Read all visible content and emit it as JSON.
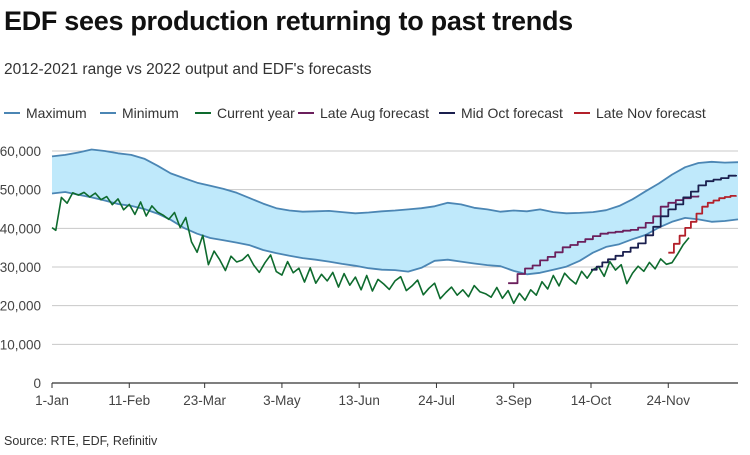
{
  "title": "EDF sees production returning to past trends",
  "subtitle": "2012-2021 range vs 2022 output and EDF's forecasts",
  "source": "Source: RTE, EDF, Refinitiv",
  "colors": {
    "band": "#bfe9fb",
    "range": "#4b86b4",
    "current": "#0e6b2e",
    "aug": "#6b1f5c",
    "oct": "#1a1f4e",
    "nov": "#b3202a",
    "grid": "#c8c8c8",
    "axis": "#333333"
  },
  "legend": [
    {
      "label": "Maximum",
      "color": "#4b86b4"
    },
    {
      "label": "Minimum",
      "color": "#4b86b4"
    },
    {
      "label": "Current year",
      "color": "#0e6b2e"
    },
    {
      "label": "Late Aug forecast",
      "color": "#6b1f5c"
    },
    {
      "label": "Mid Oct forecast",
      "color": "#1a1f4e"
    },
    {
      "label": "Late Nov forecast",
      "color": "#b3202a"
    }
  ],
  "chart_data": {
    "type": "line",
    "title": "EDF sees production returning to past trends",
    "subtitle": "2012-2021 range vs 2022 output and EDF's forecasts",
    "xlabel": "",
    "ylabel": "",
    "x_unit": "day of year",
    "xlim": [
      1,
      365
    ],
    "ylim": [
      0,
      60000
    ],
    "grid": true,
    "legend_position": "top",
    "x_ticks": [
      {
        "day": 1,
        "label": "1-Jan"
      },
      {
        "day": 42,
        "label": "11-Feb"
      },
      {
        "day": 82,
        "label": "23-Mar"
      },
      {
        "day": 123,
        "label": "3-May"
      },
      {
        "day": 164,
        "label": "13-Jun"
      },
      {
        "day": 205,
        "label": "24-Jul"
      },
      {
        "day": 246,
        "label": "3-Sep"
      },
      {
        "day": 287,
        "label": "14-Oct"
      },
      {
        "day": 328,
        "label": "24-Nov"
      }
    ],
    "y_ticks": [
      {
        "value": 0,
        "label": "0"
      },
      {
        "value": 10000,
        "label": "10,000"
      },
      {
        "value": 20000,
        "label": "20,000"
      },
      {
        "value": 30000,
        "label": "30,000"
      },
      {
        "value": 40000,
        "label": "40,000"
      },
      {
        "value": 50000,
        "label": "50,000"
      },
      {
        "value": 60000,
        "label": "60,000"
      }
    ],
    "series": [
      {
        "name": "Maximum",
        "x": [
          1,
          8,
          15,
          22,
          29,
          36,
          43,
          50,
          57,
          64,
          71,
          78,
          85,
          92,
          99,
          106,
          113,
          120,
          127,
          134,
          141,
          148,
          155,
          162,
          169,
          176,
          183,
          190,
          197,
          204,
          211,
          218,
          225,
          232,
          239,
          246,
          253,
          260,
          267,
          274,
          281,
          288,
          295,
          302,
          309,
          316,
          323,
          330,
          337,
          344,
          351,
          358,
          365
        ],
        "y": [
          58600,
          59000,
          59600,
          60400,
          60000,
          59400,
          59000,
          58000,
          56200,
          54200,
          53000,
          51800,
          51000,
          50200,
          49200,
          47800,
          46400,
          45200,
          44600,
          44300,
          44400,
          44500,
          44200,
          43900,
          44100,
          44400,
          44600,
          44900,
          45200,
          45700,
          46600,
          46200,
          45300,
          44900,
          44300,
          44600,
          44400,
          44900,
          44200,
          43900,
          44000,
          44200,
          44700,
          45800,
          47500,
          49600,
          51600,
          53900,
          55800,
          56900,
          57200,
          57000,
          57100
        ]
      },
      {
        "name": "Minimum",
        "x": [
          1,
          8,
          15,
          22,
          29,
          36,
          43,
          50,
          57,
          64,
          71,
          78,
          85,
          92,
          99,
          106,
          113,
          120,
          127,
          134,
          141,
          148,
          155,
          162,
          169,
          176,
          183,
          190,
          197,
          204,
          211,
          218,
          225,
          232,
          239,
          246,
          253,
          260,
          267,
          274,
          281,
          288,
          295,
          302,
          309,
          316,
          323,
          330,
          337,
          344,
          351,
          358,
          365
        ],
        "y": [
          49000,
          49400,
          48700,
          48000,
          47200,
          46300,
          45800,
          45000,
          43800,
          42200,
          40100,
          38600,
          37500,
          36900,
          36300,
          35600,
          34400,
          33600,
          32900,
          32300,
          31900,
          31400,
          30800,
          30300,
          29700,
          29300,
          29200,
          28800,
          29800,
          31600,
          31900,
          31400,
          30900,
          30500,
          30200,
          29000,
          28100,
          28500,
          29300,
          30100,
          31600,
          33700,
          35200,
          35900,
          37200,
          38300,
          40200,
          41700,
          42700,
          42300,
          41700,
          41900,
          42300
        ]
      },
      {
        "name": "Current year",
        "x": [
          1,
          3,
          6,
          9,
          12,
          15,
          18,
          21,
          24,
          27,
          30,
          33,
          36,
          39,
          42,
          45,
          48,
          51,
          54,
          57,
          60,
          63,
          66,
          69,
          72,
          75,
          78,
          81,
          84,
          87,
          90,
          93,
          96,
          99,
          102,
          105,
          108,
          111,
          114,
          117,
          120,
          123,
          126,
          129,
          132,
          135,
          138,
          141,
          144,
          147,
          150,
          153,
          156,
          159,
          162,
          165,
          168,
          171,
          174,
          177,
          180,
          183,
          186,
          189,
          192,
          195,
          198,
          201,
          204,
          207,
          210,
          213,
          216,
          219,
          222,
          225,
          228,
          231,
          234,
          237,
          240,
          243,
          246,
          249,
          252,
          255,
          258,
          261,
          264,
          267,
          270,
          273,
          276,
          279,
          282,
          285,
          288,
          291,
          294,
          297,
          300,
          303,
          306,
          309,
          312,
          315,
          318,
          321,
          324,
          327,
          330,
          333,
          336,
          339
        ],
        "y": [
          40200,
          39500,
          48000,
          46500,
          49200,
          48600,
          49300,
          48100,
          49100,
          47400,
          48200,
          46100,
          47600,
          44800,
          46200,
          43600,
          46800,
          43200,
          45800,
          44200,
          43400,
          42300,
          44100,
          40200,
          42800,
          36500,
          33800,
          38200,
          30600,
          34100,
          31900,
          29100,
          32800,
          31300,
          31800,
          33200,
          30500,
          28600,
          31100,
          33100,
          28800,
          27900,
          31400,
          28500,
          29700,
          26100,
          29800,
          25800,
          28100,
          26400,
          28600,
          24800,
          28300,
          25300,
          27400,
          24100,
          27800,
          23800,
          26800,
          25600,
          24200,
          26400,
          27500,
          23900,
          25100,
          26600,
          22800,
          24500,
          25800,
          21800,
          23400,
          24800,
          22700,
          24100,
          22300,
          25200,
          23600,
          23100,
          22200,
          24700,
          21900,
          23900,
          20600,
          23200,
          21400,
          24100,
          22700,
          26200,
          24300,
          27800,
          25100,
          28400,
          26800,
          25600,
          28900,
          27100,
          29300,
          30100,
          27600,
          31400,
          29200,
          30600,
          25700,
          28400,
          30200,
          28900,
          31200,
          29500,
          32100,
          30700,
          31100,
          33400,
          35800,
          37600
        ]
      },
      {
        "name": "Late Aug forecast",
        "x": [
          243,
          248,
          252,
          256,
          260,
          264,
          268,
          272,
          276,
          280,
          284,
          288,
          292,
          296,
          300,
          304,
          308,
          312,
          316,
          320,
          324,
          328,
          332,
          336,
          340,
          344
        ],
        "y": [
          25800,
          28200,
          29600,
          30400,
          31700,
          32600,
          33800,
          35100,
          35700,
          36500,
          37200,
          38000,
          38600,
          38900,
          39100,
          39400,
          39600,
          40200,
          41400,
          43100,
          45600,
          46600,
          47300,
          47800,
          48200,
          48500
        ]
      },
      {
        "name": "Mid Oct forecast",
        "x": [
          287,
          290,
          293,
          296,
          300,
          304,
          308,
          312,
          316,
          320,
          324,
          328,
          332,
          336,
          340,
          344,
          348,
          352,
          356,
          360,
          364
        ],
        "y": [
          29300,
          30100,
          31200,
          32000,
          32900,
          33900,
          35000,
          36100,
          38200,
          40400,
          43100,
          44900,
          46200,
          48000,
          49500,
          51100,
          52200,
          52600,
          53000,
          53600,
          53800
        ]
      },
      {
        "name": "Late Nov forecast",
        "x": [
          328,
          331,
          334,
          337,
          340,
          343,
          346,
          349,
          352,
          355,
          358,
          361,
          364
        ],
        "y": [
          33700,
          36000,
          38100,
          40100,
          41700,
          43800,
          45600,
          46600,
          47200,
          47800,
          48100,
          48400,
          48500
        ]
      }
    ]
  }
}
